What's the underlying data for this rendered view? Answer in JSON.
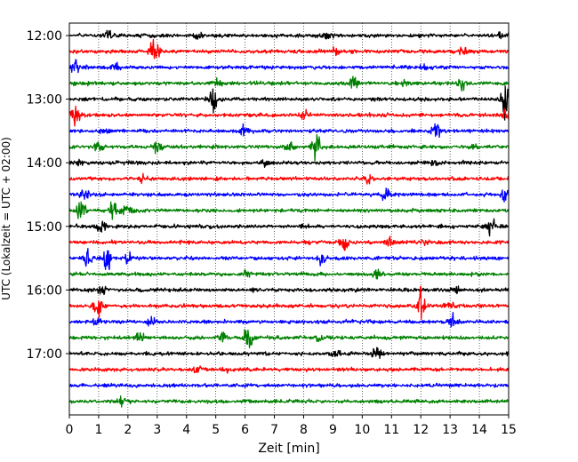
{
  "chart_data": {
    "type": "line",
    "title": "",
    "xlabel": "Zeit  [min]",
    "ylabel": "UTC (Lokalzeit = UTC + 02:00)",
    "xlim": [
      0,
      15
    ],
    "x_ticks": [
      "0",
      "1",
      "2",
      "3",
      "4",
      "5",
      "6",
      "7",
      "8",
      "9",
      "10",
      "11",
      "12",
      "13",
      "14",
      "15"
    ],
    "y_ticks": [
      "12:00",
      "13:00",
      "14:00",
      "15:00",
      "16:00",
      "17:00"
    ],
    "grid": "vertical dotted lines at each minute",
    "legend": "none",
    "trace_interval_minutes": 15,
    "colors_cycle": [
      "#000000",
      "#ff0000",
      "#0000ff",
      "#008000"
    ],
    "traces": [
      {
        "start": "12:00",
        "color": "#000000",
        "events": [
          [
            1.3,
            0.35
          ],
          [
            4.4,
            0.4
          ],
          [
            8.8,
            0.3
          ],
          [
            14.8,
            0.3
          ]
        ]
      },
      {
        "start": "12:15",
        "color": "#ff0000",
        "events": [
          [
            2.9,
            1.4
          ],
          [
            13.5,
            0.5
          ],
          [
            9.1,
            0.3
          ]
        ]
      },
      {
        "start": "12:30",
        "color": "#0000ff",
        "events": [
          [
            0.2,
            0.7
          ],
          [
            1.6,
            0.3
          ],
          [
            12.1,
            0.3
          ]
        ]
      },
      {
        "start": "12:45",
        "color": "#008000",
        "events": [
          [
            5.1,
            0.4
          ],
          [
            9.7,
            0.5
          ],
          [
            13.4,
            0.5
          ],
          [
            11.5,
            0.3
          ]
        ]
      },
      {
        "start": "13:00",
        "color": "#000000",
        "events": [
          [
            4.9,
            1.2
          ],
          [
            14.9,
            1.3
          ]
        ]
      },
      {
        "start": "13:15",
        "color": "#ff0000",
        "events": [
          [
            0.2,
            0.8
          ],
          [
            14.9,
            0.4
          ],
          [
            8.0,
            0.3
          ]
        ]
      },
      {
        "start": "13:30",
        "color": "#0000ff",
        "events": [
          [
            12.5,
            0.8
          ],
          [
            6.0,
            0.4
          ],
          [
            1.2,
            0.3
          ]
        ]
      },
      {
        "start": "13:45",
        "color": "#008000",
        "events": [
          [
            8.4,
            1.5
          ],
          [
            3.0,
            0.5
          ],
          [
            7.5,
            0.5
          ],
          [
            13.8,
            0.4
          ],
          [
            1.0,
            0.4
          ]
        ]
      },
      {
        "start": "14:00",
        "color": "#000000",
        "events": [
          [
            6.7,
            0.4
          ],
          [
            0.3,
            0.3
          ],
          [
            12.5,
            0.3
          ]
        ]
      },
      {
        "start": "14:15",
        "color": "#ff0000",
        "events": [
          [
            10.2,
            0.4
          ],
          [
            2.5,
            0.3
          ]
        ]
      },
      {
        "start": "14:30",
        "color": "#0000ff",
        "events": [
          [
            10.8,
            0.7
          ],
          [
            14.9,
            0.6
          ],
          [
            0.5,
            0.3
          ]
        ]
      },
      {
        "start": "14:45",
        "color": "#008000",
        "events": [
          [
            0.4,
            0.8
          ],
          [
            1.5,
            0.8
          ],
          [
            2.0,
            0.5
          ]
        ]
      },
      {
        "start": "15:00",
        "color": "#000000",
        "events": [
          [
            1.1,
            0.7
          ],
          [
            14.4,
            0.9
          ],
          [
            8.0,
            0.3
          ]
        ]
      },
      {
        "start": "15:15",
        "color": "#ff0000",
        "events": [
          [
            9.4,
            0.8
          ],
          [
            10.9,
            0.5
          ],
          [
            12.1,
            0.3
          ]
        ]
      },
      {
        "start": "15:30",
        "color": "#0000ff",
        "events": [
          [
            0.6,
            0.8
          ],
          [
            1.3,
            0.9
          ],
          [
            8.6,
            0.4
          ],
          [
            2.0,
            0.4
          ]
        ]
      },
      {
        "start": "15:45",
        "color": "#008000",
        "events": [
          [
            6.0,
            0.3
          ],
          [
            10.5,
            0.3
          ]
        ]
      },
      {
        "start": "16:00",
        "color": "#000000",
        "events": [
          [
            1.1,
            0.4
          ],
          [
            13.2,
            0.3
          ]
        ]
      },
      {
        "start": "16:15",
        "color": "#ff0000",
        "events": [
          [
            0.95,
            1.5
          ],
          [
            12.0,
            1.1
          ],
          [
            13.0,
            0.3
          ]
        ]
      },
      {
        "start": "16:30",
        "color": "#0000ff",
        "events": [
          [
            13.1,
            0.5
          ],
          [
            0.9,
            0.3
          ],
          [
            2.8,
            0.3
          ]
        ]
      },
      {
        "start": "16:45",
        "color": "#008000",
        "events": [
          [
            6.1,
            1.0
          ],
          [
            5.2,
            0.6
          ],
          [
            2.4,
            0.5
          ],
          [
            8.5,
            0.3
          ]
        ]
      },
      {
        "start": "17:00",
        "color": "#000000",
        "events": [
          [
            10.5,
            0.7
          ],
          [
            9.1,
            0.3
          ]
        ]
      },
      {
        "start": "17:15",
        "color": "#ff0000",
        "events": [
          [
            4.4,
            0.4
          ],
          [
            5.4,
            0.3
          ]
        ]
      },
      {
        "start": "17:30",
        "color": "#0000ff",
        "events": []
      },
      {
        "start": "17:45",
        "color": "#008000",
        "events": [
          [
            1.8,
            0.5
          ]
        ]
      }
    ]
  }
}
